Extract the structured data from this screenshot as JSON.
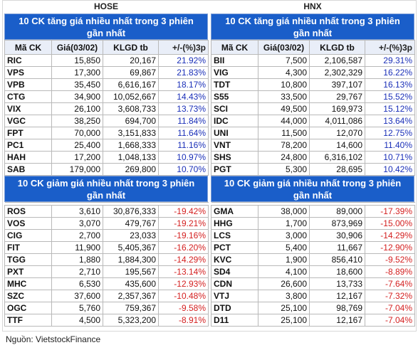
{
  "hose": {
    "exchange": "HOSE",
    "gainers_title": [
      "10 CK tăng giá nhiều nhất trong 3 phiên",
      "gần nhất"
    ],
    "losers_title": [
      "10 CK giảm giá nhiều nhất trong 3 phiên",
      "gần nhất"
    ],
    "headers": [
      "Mã CK",
      "Giá(03/02)",
      "KLGD tb",
      "+/-(%)3p"
    ],
    "gainers": [
      [
        "RIC",
        "15,850",
        "20,167",
        "21.92%"
      ],
      [
        "VPS",
        "17,300",
        "69,867",
        "21.83%"
      ],
      [
        "VPB",
        "35,450",
        "6,616,167",
        "18.17%"
      ],
      [
        "CTG",
        "34,900",
        "10,052,667",
        "14.43%"
      ],
      [
        "VIX",
        "26,100",
        "3,608,733",
        "13.73%"
      ],
      [
        "VGC",
        "38,250",
        "694,700",
        "11.84%"
      ],
      [
        "FPT",
        "70,000",
        "3,151,833",
        "11.64%"
      ],
      [
        "PC1",
        "25,400",
        "1,668,333",
        "11.16%"
      ],
      [
        "HAH",
        "17,200",
        "1,048,133",
        "10.97%"
      ],
      [
        "SAB",
        "179,000",
        "269,800",
        "10.70%"
      ]
    ],
    "losers": [
      [
        "ROS",
        "3,610",
        "30,876,333",
        "-19.42%"
      ],
      [
        "VOS",
        "3,070",
        "479,767",
        "-19.21%"
      ],
      [
        "CIG",
        "2,700",
        "23,033",
        "-19.16%"
      ],
      [
        "FIT",
        "11,900",
        "5,405,367",
        "-16.20%"
      ],
      [
        "TGG",
        "1,880",
        "1,884,300",
        "-14.29%"
      ],
      [
        "PXT",
        "2,710",
        "195,567",
        "-13.14%"
      ],
      [
        "MHC",
        "6,530",
        "435,600",
        "-12.93%"
      ],
      [
        "SZC",
        "37,600",
        "2,357,367",
        "-10.48%"
      ],
      [
        "OGC",
        "5,760",
        "759,367",
        "-9.58%"
      ],
      [
        "TTF",
        "4,500",
        "5,323,200",
        "-8.91%"
      ]
    ]
  },
  "hnx": {
    "exchange": "HNX",
    "gainers_title": [
      "10 CK tăng giá nhiều nhất trong 3 phiên",
      "gần nhất"
    ],
    "losers_title": [
      "10 CK giảm giá nhiều nhất trong 3 phiên",
      "gần nhất"
    ],
    "headers": [
      "Mã CK",
      "Giá(03/02)",
      "KLGD tb",
      "+/-(%)3p"
    ],
    "gainers": [
      [
        "BII",
        "7,500",
        "2,106,587",
        "29.31%"
      ],
      [
        "VIG",
        "4,300",
        "2,302,329",
        "16.22%"
      ],
      [
        "TDT",
        "10,800",
        "397,107",
        "16.13%"
      ],
      [
        "S55",
        "33,500",
        "29,767",
        "15.52%"
      ],
      [
        "SCI",
        "49,500",
        "169,973",
        "15.12%"
      ],
      [
        "IDC",
        "44,000",
        "4,011,086",
        "13.64%"
      ],
      [
        "UNI",
        "11,500",
        "12,070",
        "12.75%"
      ],
      [
        "VNT",
        "78,200",
        "14,600",
        "11.40%"
      ],
      [
        "SHS",
        "24,800",
        "6,316,102",
        "10.71%"
      ],
      [
        "PGT",
        "5,300",
        "28,695",
        "10.42%"
      ]
    ],
    "losers": [
      [
        "GMA",
        "38,000",
        "89,000",
        "-17.39%"
      ],
      [
        "HHG",
        "1,700",
        "873,969",
        "-15.00%"
      ],
      [
        "LCS",
        "3,000",
        "30,906",
        "-14.29%"
      ],
      [
        "PCT",
        "5,400",
        "11,667",
        "-12.90%"
      ],
      [
        "KVC",
        "1,900",
        "856,410",
        "-9.52%"
      ],
      [
        "SD4",
        "4,100",
        "18,600",
        "-8.89%"
      ],
      [
        "CDN",
        "26,600",
        "13,733",
        "-7.64%"
      ],
      [
        "VTJ",
        "3,800",
        "12,167",
        "-7.32%"
      ],
      [
        "DTD",
        "25,100",
        "98,769",
        "-7.04%"
      ],
      [
        "D11",
        "25,100",
        "12,167",
        "-7.04%"
      ]
    ]
  },
  "source": "Nguồn: VietstockFinance",
  "colors": {
    "banner": "#1a5ec9",
    "up": "#1a2fb8",
    "down": "#d42020"
  }
}
